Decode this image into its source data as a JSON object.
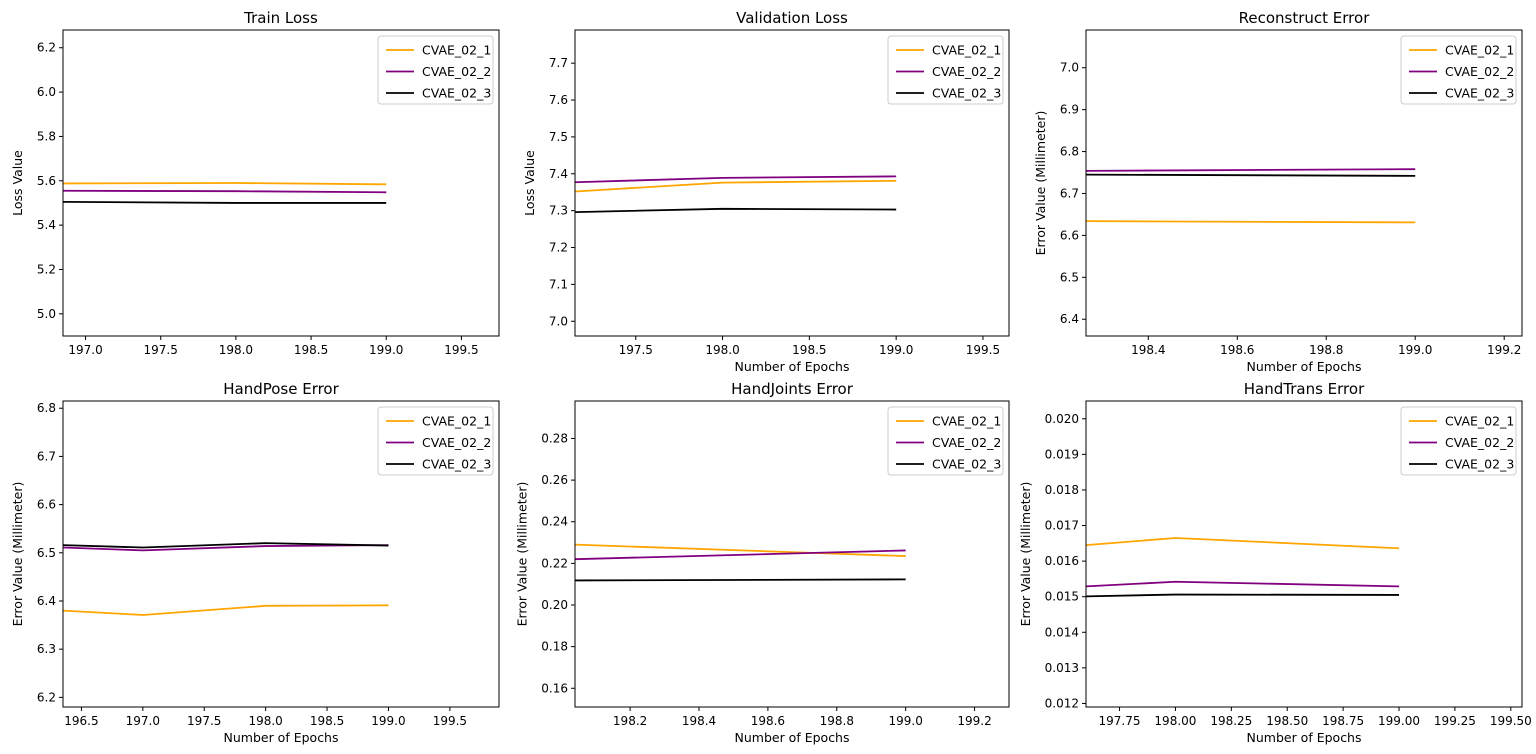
{
  "figure": {
    "background": "#ffffff"
  },
  "chart_data": [
    {
      "type": "line",
      "title": "Train Loss",
      "xlabel": "",
      "ylabel": "Loss Value",
      "xlim": [
        196.85,
        199.75
      ],
      "ylim": [
        4.9,
        6.28
      ],
      "xticks": [
        197.0,
        197.5,
        198.0,
        198.5,
        199.0,
        199.5
      ],
      "xtick_labels": [
        "197.0",
        "197.5",
        "198.0",
        "198.5",
        "199.0",
        "199.5"
      ],
      "yticks": [
        5.0,
        5.2,
        5.4,
        5.6,
        5.8,
        6.0,
        6.2
      ],
      "ytick_labels": [
        "5.0",
        "5.2",
        "5.4",
        "5.6",
        "5.8",
        "6.0",
        "6.2"
      ],
      "legend_position": "top-right",
      "series": [
        {
          "name": "CVAE_02_1",
          "color": "#ffa500",
          "x": [
            196.85,
            198.0,
            199.0
          ],
          "y": [
            5.588,
            5.59,
            5.584
          ]
        },
        {
          "name": "CVAE_02_2",
          "color": "#800080",
          "x": [
            196.85,
            198.0,
            199.0
          ],
          "y": [
            5.555,
            5.553,
            5.548
          ]
        },
        {
          "name": "CVAE_02_3",
          "color": "#000000",
          "x": [
            196.85,
            198.0,
            199.0
          ],
          "y": [
            5.505,
            5.5,
            5.5
          ]
        }
      ]
    },
    {
      "type": "line",
      "title": "Validation Loss",
      "xlabel": "Number of Epochs",
      "ylabel": "Loss Value",
      "xlim": [
        197.15,
        199.65
      ],
      "ylim": [
        6.96,
        7.79
      ],
      "xticks": [
        197.5,
        198.0,
        198.5,
        199.0,
        199.5
      ],
      "xtick_labels": [
        "197.5",
        "198.0",
        "198.5",
        "199.0",
        "199.5"
      ],
      "yticks": [
        7.0,
        7.1,
        7.2,
        7.3,
        7.4,
        7.5,
        7.6,
        7.7
      ],
      "ytick_labels": [
        "7.0",
        "7.1",
        "7.2",
        "7.3",
        "7.4",
        "7.5",
        "7.6",
        "7.7"
      ],
      "legend_position": "top-right",
      "series": [
        {
          "name": "CVAE_02_1",
          "color": "#ffa500",
          "x": [
            197.15,
            198.0,
            199.0
          ],
          "y": [
            7.352,
            7.376,
            7.381
          ]
        },
        {
          "name": "CVAE_02_2",
          "color": "#800080",
          "x": [
            197.15,
            198.0,
            199.0
          ],
          "y": [
            7.377,
            7.389,
            7.393
          ]
        },
        {
          "name": "CVAE_02_3",
          "color": "#000000",
          "x": [
            197.15,
            198.0,
            199.0
          ],
          "y": [
            7.296,
            7.305,
            7.303
          ]
        }
      ]
    },
    {
      "type": "line",
      "title": "Reconstruct Error",
      "xlabel": "Number of Epochs",
      "ylabel": "Error Value (Millimeter)",
      "xlim": [
        198.26,
        199.24
      ],
      "ylim": [
        6.36,
        7.09
      ],
      "xticks": [
        198.4,
        198.6,
        198.8,
        199.0,
        199.2
      ],
      "xtick_labels": [
        "198.4",
        "198.6",
        "198.8",
        "199.0",
        "199.2"
      ],
      "yticks": [
        6.4,
        6.5,
        6.6,
        6.7,
        6.8,
        6.9,
        7.0
      ],
      "ytick_labels": [
        "6.4",
        "6.5",
        "6.6",
        "6.7",
        "6.8",
        "6.9",
        "7.0"
      ],
      "legend_position": "top-right",
      "series": [
        {
          "name": "CVAE_02_1",
          "color": "#ffa500",
          "x": [
            198.26,
            199.0
          ],
          "y": [
            6.634,
            6.631
          ]
        },
        {
          "name": "CVAE_02_2",
          "color": "#800080",
          "x": [
            198.26,
            199.0
          ],
          "y": [
            6.754,
            6.758
          ]
        },
        {
          "name": "CVAE_02_3",
          "color": "#000000",
          "x": [
            198.26,
            199.0
          ],
          "y": [
            6.745,
            6.742
          ]
        }
      ]
    },
    {
      "type": "line",
      "title": "HandPose Error",
      "xlabel": "Number of Epochs",
      "ylabel": "Error Value (Millimeter)",
      "xlim": [
        196.35,
        199.9
      ],
      "ylim": [
        6.18,
        6.815
      ],
      "xticks": [
        196.5,
        197.0,
        197.5,
        198.0,
        198.5,
        199.0,
        199.5
      ],
      "xtick_labels": [
        "196.5",
        "197.0",
        "197.5",
        "198.0",
        "198.5",
        "199.0",
        "199.5"
      ],
      "yticks": [
        6.2,
        6.3,
        6.4,
        6.5,
        6.6,
        6.7,
        6.8
      ],
      "ytick_labels": [
        "6.2",
        "6.3",
        "6.4",
        "6.5",
        "6.6",
        "6.7",
        "6.8"
      ],
      "legend_position": "top-right",
      "series": [
        {
          "name": "CVAE_02_1",
          "color": "#ffa500",
          "x": [
            196.35,
            197.0,
            198.0,
            199.0
          ],
          "y": [
            6.38,
            6.371,
            6.39,
            6.391
          ]
        },
        {
          "name": "CVAE_02_2",
          "color": "#800080",
          "x": [
            196.35,
            197.0,
            198.0,
            199.0
          ],
          "y": [
            6.511,
            6.505,
            6.514,
            6.516
          ]
        },
        {
          "name": "CVAE_02_3",
          "color": "#000000",
          "x": [
            196.35,
            197.0,
            198.0,
            199.0
          ],
          "y": [
            6.516,
            6.511,
            6.52,
            6.515
          ]
        }
      ]
    },
    {
      "type": "line",
      "title": "HandJoints Error",
      "xlabel": "Number of Epochs",
      "ylabel": "Error Value (Millimeter)",
      "xlim": [
        198.04,
        199.3
      ],
      "ylim": [
        0.151,
        0.298
      ],
      "xticks": [
        198.2,
        198.4,
        198.6,
        198.8,
        199.0,
        199.2
      ],
      "xtick_labels": [
        "198.2",
        "198.4",
        "198.6",
        "198.8",
        "199.0",
        "199.2"
      ],
      "yticks": [
        0.16,
        0.18,
        0.2,
        0.22,
        0.24,
        0.26,
        0.28
      ],
      "ytick_labels": [
        "0.16",
        "0.18",
        "0.20",
        "0.22",
        "0.24",
        "0.26",
        "0.28"
      ],
      "legend_position": "top-right",
      "series": [
        {
          "name": "CVAE_02_1",
          "color": "#ffa500",
          "x": [
            198.04,
            199.0
          ],
          "y": [
            0.229,
            0.2235
          ]
        },
        {
          "name": "CVAE_02_2",
          "color": "#800080",
          "x": [
            198.04,
            199.0
          ],
          "y": [
            0.222,
            0.2262
          ]
        },
        {
          "name": "CVAE_02_3",
          "color": "#000000",
          "x": [
            198.04,
            199.0
          ],
          "y": [
            0.2118,
            0.2123
          ]
        }
      ]
    },
    {
      "type": "line",
      "title": "HandTrans Error",
      "xlabel": "Number of Epochs",
      "ylabel": "Error Value (Millimeter)",
      "xlim": [
        197.6,
        199.55
      ],
      "ylim": [
        0.0119,
        0.0205
      ],
      "xticks": [
        197.75,
        198.0,
        198.25,
        198.5,
        198.75,
        199.0,
        199.25,
        199.5
      ],
      "xtick_labels": [
        "197.75",
        "198.00",
        "198.25",
        "198.50",
        "198.75",
        "199.00",
        "199.25",
        "199.50"
      ],
      "yticks": [
        0.012,
        0.013,
        0.014,
        0.015,
        0.016,
        0.017,
        0.018,
        0.019,
        0.02
      ],
      "ytick_labels": [
        "0.012",
        "0.013",
        "0.014",
        "0.015",
        "0.016",
        "0.017",
        "0.018",
        "0.019",
        "0.020"
      ],
      "legend_position": "top-right",
      "series": [
        {
          "name": "CVAE_02_1",
          "color": "#ffa500",
          "x": [
            197.6,
            198.0,
            199.0
          ],
          "y": [
            0.01645,
            0.01665,
            0.01636
          ]
        },
        {
          "name": "CVAE_02_2",
          "color": "#800080",
          "x": [
            197.6,
            198.0,
            199.0
          ],
          "y": [
            0.01529,
            0.01542,
            0.01529
          ]
        },
        {
          "name": "CVAE_02_3",
          "color": "#000000",
          "x": [
            197.6,
            198.0,
            199.0
          ],
          "y": [
            0.01501,
            0.01506,
            0.01505
          ]
        }
      ]
    }
  ]
}
